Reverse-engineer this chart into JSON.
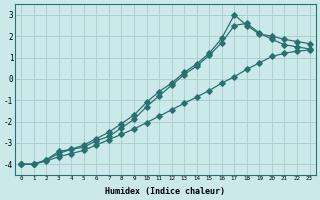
{
  "xlabel": "Humidex (Indice chaleur)",
  "background_color": "#cce9e9",
  "grid_color": "#aad0d0",
  "line_color": "#2a7070",
  "xlim": [
    -0.5,
    23.5
  ],
  "ylim": [
    -4.5,
    3.5
  ],
  "xticks": [
    0,
    1,
    2,
    3,
    4,
    5,
    6,
    7,
    8,
    9,
    10,
    11,
    12,
    13,
    14,
    15,
    16,
    17,
    18,
    19,
    20,
    21,
    22,
    23
  ],
  "yticks": [
    -4,
    -3,
    -2,
    -1,
    0,
    1,
    2,
    3
  ],
  "line1_x": [
    0,
    1,
    2,
    3,
    4,
    5,
    6,
    7,
    8,
    9,
    10,
    11,
    12,
    13,
    14,
    15,
    16,
    17,
    18,
    19,
    20,
    21,
    22,
    23
  ],
  "line1_y": [
    -4.0,
    -4.0,
    -3.8,
    -3.4,
    -3.3,
    -3.1,
    -2.8,
    -2.5,
    -2.1,
    -1.7,
    -1.1,
    -0.6,
    -0.2,
    0.3,
    0.7,
    1.2,
    1.9,
    3.0,
    2.5,
    2.1,
    2.0,
    1.85,
    1.75,
    1.65
  ],
  "line2_x": [
    0,
    1,
    2,
    3,
    4,
    5,
    6,
    7,
    8,
    9,
    10,
    11,
    12,
    13,
    14,
    15,
    16,
    17,
    18,
    19,
    20,
    21,
    22,
    23
  ],
  "line2_y": [
    -4.0,
    -4.0,
    -3.8,
    -3.5,
    -3.3,
    -3.2,
    -2.9,
    -2.7,
    -2.3,
    -1.9,
    -1.3,
    -0.8,
    -0.3,
    0.2,
    0.6,
    1.1,
    1.7,
    2.5,
    2.6,
    2.15,
    1.85,
    1.6,
    1.5,
    1.4
  ],
  "line3_x": [
    0,
    1,
    2,
    3,
    4,
    5,
    6,
    7,
    8,
    9,
    10,
    11,
    12,
    13,
    14,
    15,
    16,
    17,
    18,
    19,
    20,
    21,
    22,
    23
  ],
  "line3_y": [
    -4.0,
    -4.0,
    -3.85,
    -3.65,
    -3.5,
    -3.35,
    -3.1,
    -2.85,
    -2.6,
    -2.35,
    -2.05,
    -1.75,
    -1.45,
    -1.15,
    -0.85,
    -0.55,
    -0.2,
    0.1,
    0.45,
    0.75,
    1.05,
    1.2,
    1.3,
    1.35
  ]
}
